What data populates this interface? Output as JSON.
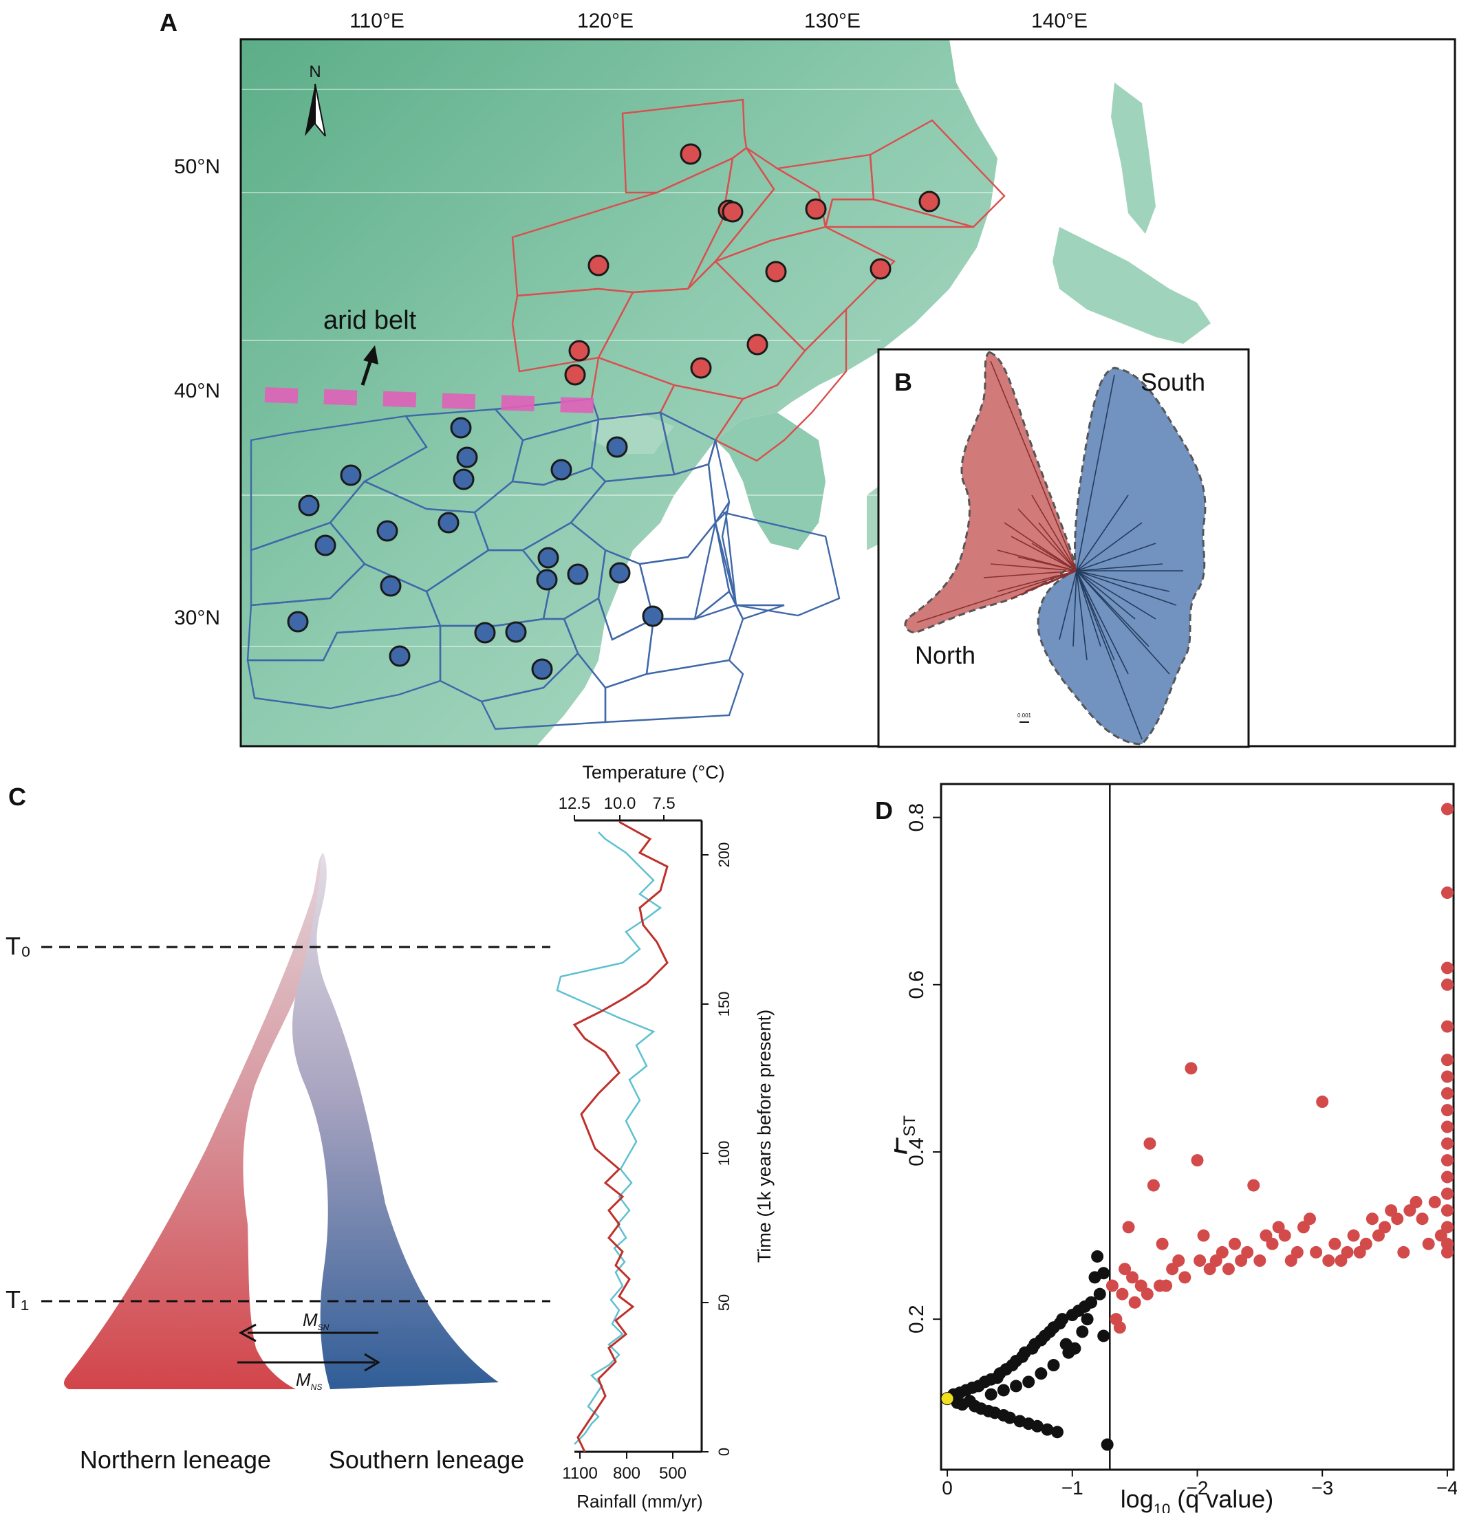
{
  "panels": {
    "a": "A",
    "b": "B",
    "c": "C",
    "d": "D"
  },
  "map": {
    "lon_labels": [
      "110°E",
      "120°E",
      "130°E",
      "140°E"
    ],
    "lat_labels": [
      "50°N",
      "40°N",
      "30°N"
    ],
    "north_label": "N",
    "arid_label": "arid belt",
    "north_color": "#d94f4f",
    "south_color": "#3f68a8",
    "arid_color": "#e060b8",
    "land_color": "#7ec4a6"
  },
  "tree": {
    "north_label": "North",
    "south_label": "South",
    "scale_label": "0.001",
    "north_color": "#d07a7a",
    "south_color": "#7292c0"
  },
  "lineage": {
    "t0": "T₀",
    "t1": "T₁",
    "m_sn": "M",
    "m_sn_sub": "SN",
    "m_ns": "M",
    "m_ns_sub": "NS",
    "north_name": "Northern leneage",
    "south_name": "Southern leneage"
  },
  "climate": {
    "top_axis_label": "Temperature (°C)",
    "top_ticks": [
      "12.5",
      "10.0",
      "7.5"
    ],
    "bottom_axis_label": "Rainfall (mm/yr)",
    "bottom_ticks": [
      "1100",
      "800",
      "500"
    ],
    "y_axis_label": "Time (1k years before present)",
    "y_ticks": [
      "0",
      "50",
      "100",
      "150",
      "200"
    ],
    "temperature_color": "#c0302a",
    "rainfall_color": "#5ec0d0"
  },
  "chart_data": {
    "type": "scatter",
    "xlabel": "log10 (q value)",
    "xlabel_main": "log",
    "xlabel_sub": "10",
    "xlabel_rest": " (q value)",
    "ylabel": "FST",
    "ylabel_main": "F",
    "ylabel_sub": "ST",
    "x_ticks": [
      "0",
      "−1",
      "−2",
      "−3",
      "−4"
    ],
    "y_ticks": [
      "0.2",
      "0.4",
      "0.6",
      "0.8"
    ],
    "xlim": [
      0.05,
      -4.05
    ],
    "ylim": [
      0.02,
      0.84
    ],
    "threshold_x": -1.3,
    "series": [
      {
        "color": "#111111",
        "points": [
          [
            0,
            0.105
          ],
          [
            -0.05,
            0.11
          ],
          [
            -0.08,
            0.1
          ],
          [
            -0.1,
            0.112
          ],
          [
            -0.12,
            0.098
          ],
          [
            -0.15,
            0.115
          ],
          [
            -0.18,
            0.102
          ],
          [
            -0.2,
            0.118
          ],
          [
            -0.22,
            0.096
          ],
          [
            -0.25,
            0.12
          ],
          [
            -0.27,
            0.093
          ],
          [
            -0.3,
            0.125
          ],
          [
            -0.33,
            0.09
          ],
          [
            -0.35,
            0.128
          ],
          [
            -0.38,
            0.088
          ],
          [
            -0.4,
            0.13
          ],
          [
            -0.42,
            0.135
          ],
          [
            -0.45,
            0.085
          ],
          [
            -0.47,
            0.14
          ],
          [
            -0.5,
            0.082
          ],
          [
            -0.52,
            0.145
          ],
          [
            -0.55,
            0.15
          ],
          [
            -0.58,
            0.078
          ],
          [
            -0.6,
            0.155
          ],
          [
            -0.62,
            0.16
          ],
          [
            -0.65,
            0.075
          ],
          [
            -0.68,
            0.165
          ],
          [
            -0.7,
            0.17
          ],
          [
            -0.72,
            0.072
          ],
          [
            -0.75,
            0.175
          ],
          [
            -0.78,
            0.18
          ],
          [
            -0.8,
            0.068
          ],
          [
            -0.82,
            0.185
          ],
          [
            -0.85,
            0.19
          ],
          [
            -0.88,
            0.065
          ],
          [
            -0.9,
            0.195
          ],
          [
            -0.92,
            0.2
          ],
          [
            -0.95,
            0.17
          ],
          [
            -0.97,
            0.16
          ],
          [
            -1.0,
            0.205
          ],
          [
            -1.02,
            0.165
          ],
          [
            -1.05,
            0.21
          ],
          [
            -1.08,
            0.185
          ],
          [
            -1.1,
            0.215
          ],
          [
            -1.12,
            0.2
          ],
          [
            -1.15,
            0.22
          ],
          [
            -1.18,
            0.25
          ],
          [
            -1.2,
            0.275
          ],
          [
            -1.22,
            0.23
          ],
          [
            -1.25,
            0.255
          ],
          [
            -1.25,
            0.18
          ],
          [
            -1.28,
            0.05
          ],
          [
            -0.35,
            0.11
          ],
          [
            -0.45,
            0.115
          ],
          [
            -0.55,
            0.12
          ],
          [
            -0.65,
            0.125
          ],
          [
            -0.75,
            0.135
          ],
          [
            -0.85,
            0.145
          ]
        ]
      },
      {
        "color": "#d34a4a",
        "points": [
          [
            -1.32,
            0.24
          ],
          [
            -1.35,
            0.2
          ],
          [
            -1.38,
            0.19
          ],
          [
            -1.4,
            0.23
          ],
          [
            -1.42,
            0.26
          ],
          [
            -1.45,
            0.31
          ],
          [
            -1.48,
            0.25
          ],
          [
            -1.5,
            0.22
          ],
          [
            -1.55,
            0.24
          ],
          [
            -1.6,
            0.23
          ],
          [
            -1.62,
            0.41
          ],
          [
            -1.65,
            0.36
          ],
          [
            -1.7,
            0.24
          ],
          [
            -1.72,
            0.29
          ],
          [
            -1.75,
            0.24
          ],
          [
            -1.8,
            0.26
          ],
          [
            -1.85,
            0.27
          ],
          [
            -1.9,
            0.25
          ],
          [
            -1.95,
            0.5
          ],
          [
            -2.0,
            0.39
          ],
          [
            -2.02,
            0.27
          ],
          [
            -2.05,
            0.3
          ],
          [
            -2.1,
            0.26
          ],
          [
            -2.15,
            0.27
          ],
          [
            -2.2,
            0.28
          ],
          [
            -2.25,
            0.26
          ],
          [
            -2.3,
            0.29
          ],
          [
            -2.35,
            0.27
          ],
          [
            -2.4,
            0.28
          ],
          [
            -2.45,
            0.36
          ],
          [
            -2.5,
            0.27
          ],
          [
            -2.55,
            0.3
          ],
          [
            -2.6,
            0.29
          ],
          [
            -2.65,
            0.31
          ],
          [
            -2.7,
            0.3
          ],
          [
            -2.75,
            0.27
          ],
          [
            -2.8,
            0.28
          ],
          [
            -2.85,
            0.31
          ],
          [
            -2.9,
            0.32
          ],
          [
            -2.95,
            0.28
          ],
          [
            -3.0,
            0.46
          ],
          [
            -3.05,
            0.27
          ],
          [
            -3.1,
            0.29
          ],
          [
            -3.15,
            0.27
          ],
          [
            -3.2,
            0.28
          ],
          [
            -3.25,
            0.3
          ],
          [
            -3.3,
            0.28
          ],
          [
            -3.35,
            0.29
          ],
          [
            -3.4,
            0.32
          ],
          [
            -3.45,
            0.3
          ],
          [
            -3.5,
            0.31
          ],
          [
            -3.55,
            0.33
          ],
          [
            -3.6,
            0.32
          ],
          [
            -3.65,
            0.28
          ],
          [
            -3.7,
            0.33
          ],
          [
            -3.75,
            0.34
          ],
          [
            -3.8,
            0.32
          ],
          [
            -3.85,
            0.29
          ],
          [
            -3.9,
            0.34
          ],
          [
            -3.95,
            0.3
          ],
          [
            -4.0,
            0.81
          ],
          [
            -4.0,
            0.71
          ],
          [
            -4.0,
            0.62
          ],
          [
            -4.0,
            0.6
          ],
          [
            -4.0,
            0.55
          ],
          [
            -4.0,
            0.51
          ],
          [
            -4.0,
            0.49
          ],
          [
            -4.0,
            0.47
          ],
          [
            -4.0,
            0.45
          ],
          [
            -4.0,
            0.43
          ],
          [
            -4.0,
            0.41
          ],
          [
            -4.0,
            0.39
          ],
          [
            -4.0,
            0.37
          ],
          [
            -4.0,
            0.35
          ],
          [
            -4.0,
            0.33
          ],
          [
            -4.0,
            0.31
          ],
          [
            -4.0,
            0.29
          ],
          [
            -4.0,
            0.28
          ]
        ]
      },
      {
        "color": "#f0e020",
        "points": [
          [
            0,
            0.105
          ]
        ]
      }
    ]
  }
}
